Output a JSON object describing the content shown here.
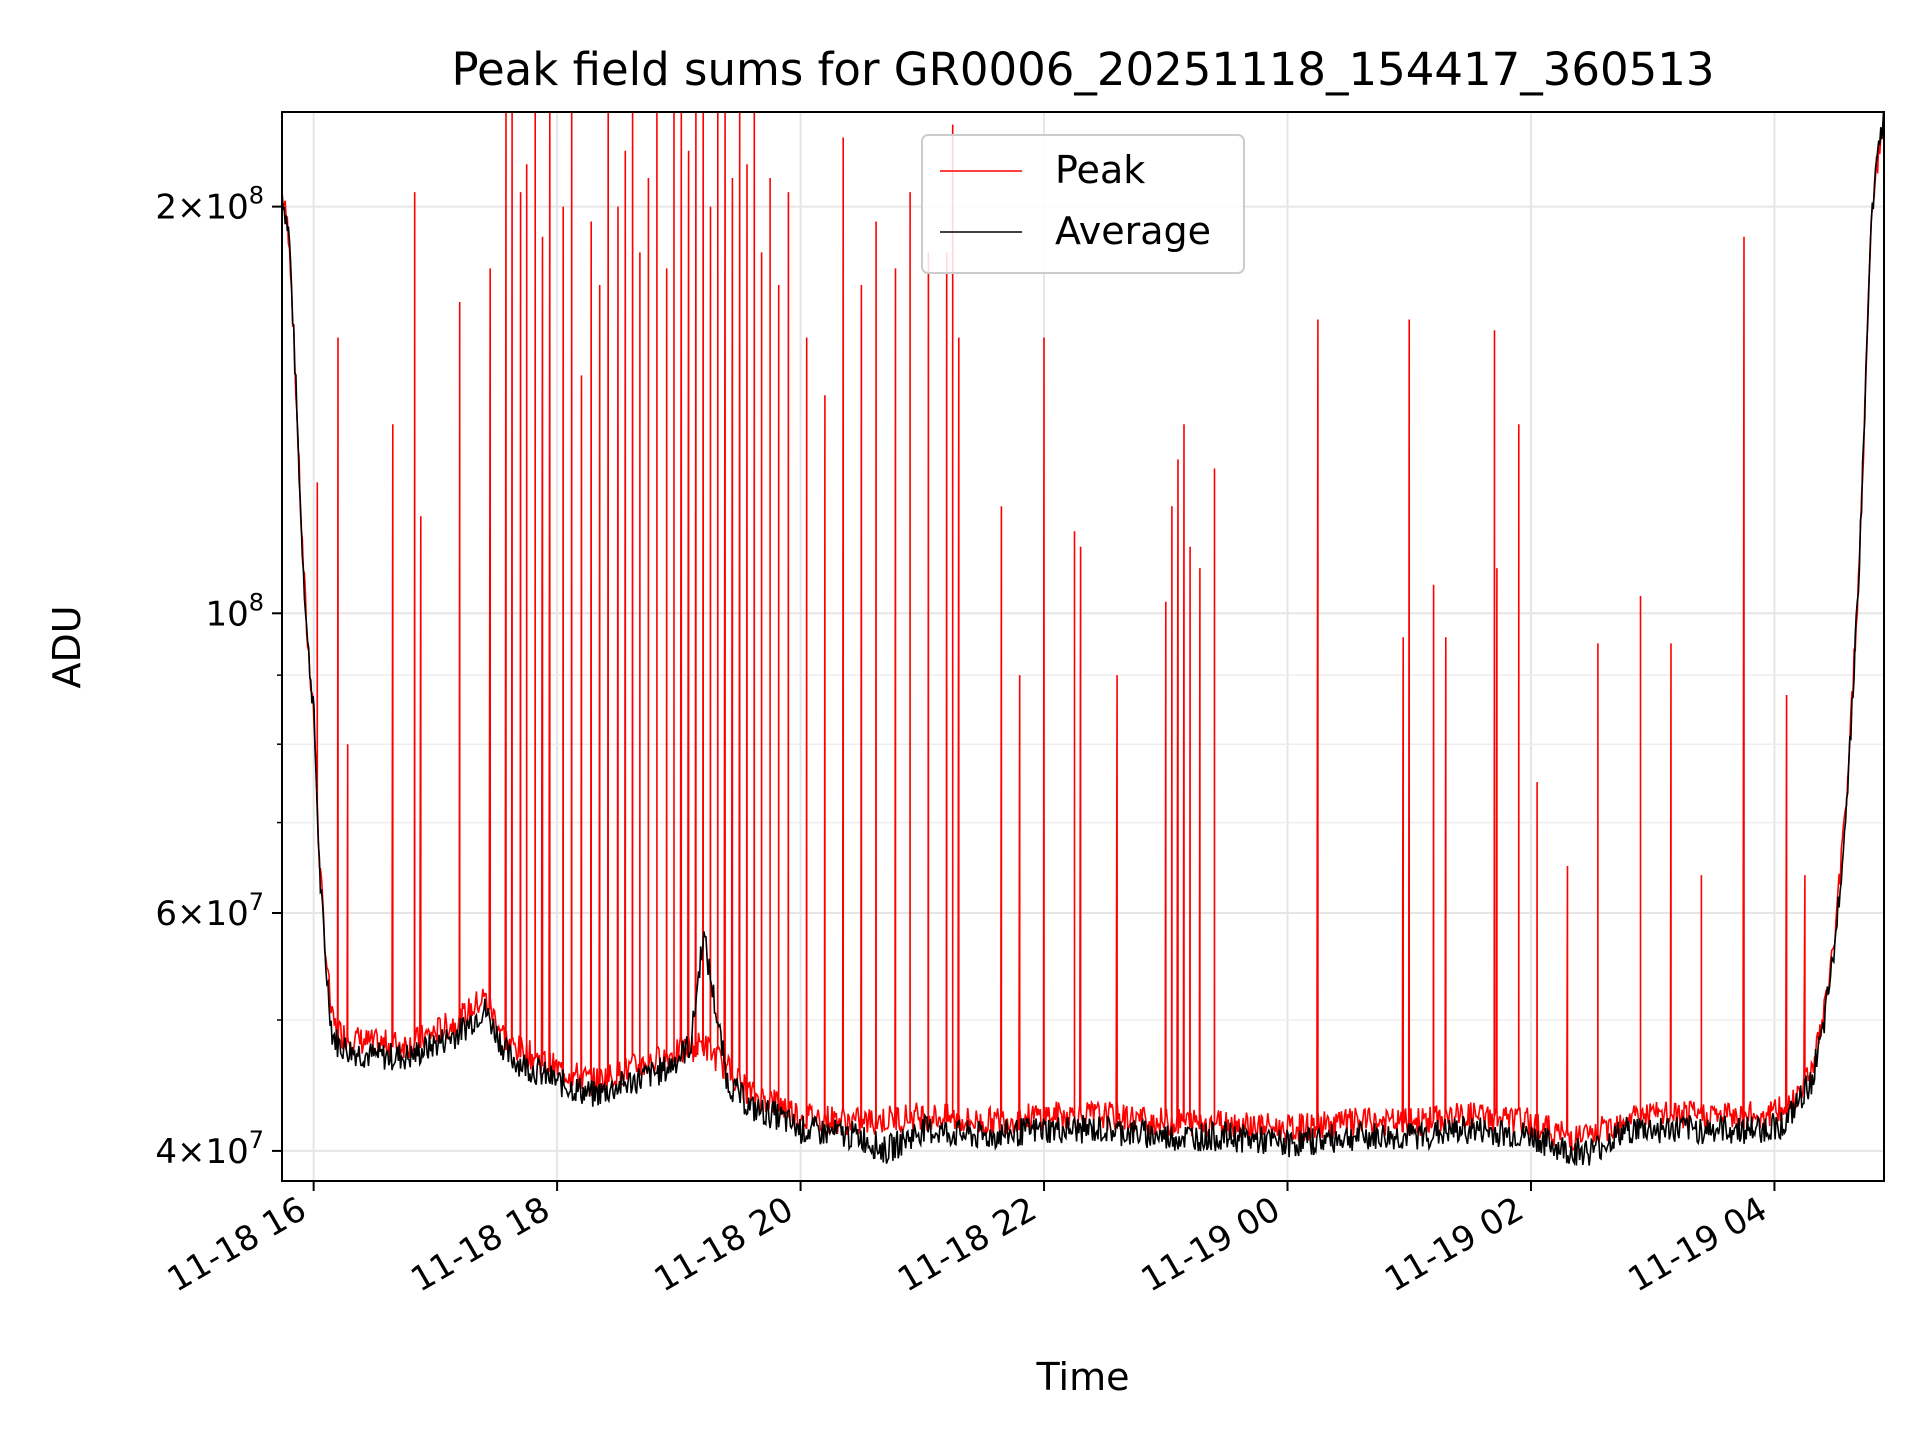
{
  "chart_data": {
    "type": "line",
    "title": "Peak field sums for GR0006_20251118_154417_360513",
    "xlabel": "Time",
    "ylabel": "ADU",
    "y_scale": "log",
    "ylim": [
      38000000,
      235000000
    ],
    "xlim_hours": [
      -0.26,
      12.9
    ],
    "legend_position": "top-center",
    "grid": true,
    "x_ticks": [
      {
        "hour": 0,
        "label": "11-18 16"
      },
      {
        "hour": 2,
        "label": "11-18 18"
      },
      {
        "hour": 4,
        "label": "11-18 20"
      },
      {
        "hour": 6,
        "label": "11-18 22"
      },
      {
        "hour": 8,
        "label": "11-19 00"
      },
      {
        "hour": 10,
        "label": "11-19 02"
      },
      {
        "hour": 12,
        "label": "11-19 04"
      }
    ],
    "y_ticks": [
      {
        "value": 40000000,
        "mantissa": "4",
        "exp": "7"
      },
      {
        "value": 60000000,
        "mantissa": "6",
        "exp": "7"
      },
      {
        "value": 100000000,
        "mantissa": "",
        "exp": "8"
      },
      {
        "value": 200000000,
        "mantissa": "2",
        "exp": "8"
      }
    ],
    "y_minor_ticks": [
      50000000,
      70000000,
      80000000,
      90000000
    ],
    "series": [
      {
        "name": "Peak",
        "color": "#ff0000",
        "baseline_hours": [
          -0.26,
          -0.2,
          -0.15,
          -0.1,
          -0.05,
          0.0,
          0.05,
          0.1,
          0.15,
          0.2,
          0.3,
          0.5,
          0.8,
          1.0,
          1.2,
          1.4,
          1.6,
          1.8,
          2.0,
          2.3,
          2.6,
          2.9,
          3.2,
          3.4,
          3.6,
          3.8,
          4.0,
          4.5,
          5.0,
          5.5,
          6.0,
          6.5,
          7.0,
          7.5,
          8.0,
          8.5,
          9.0,
          9.5,
          10.0,
          10.3,
          10.5,
          10.8,
          11.0,
          11.5,
          11.9,
          12.1,
          12.3,
          12.4,
          12.5,
          12.6,
          12.7,
          12.8,
          12.9
        ],
        "baseline_values": [
          205000000,
          190000000,
          150000000,
          115000000,
          95000000,
          85000000,
          65000000,
          56000000,
          50000000,
          49000000,
          48500000,
          48000000,
          48000000,
          49000000,
          50000000,
          52000000,
          48000000,
          47000000,
          46000000,
          45000000,
          46000000,
          47000000,
          48000000,
          46000000,
          44000000,
          43500000,
          42500000,
          42000000,
          42500000,
          42000000,
          42500000,
          42500000,
          42000000,
          42000000,
          41500000,
          42000000,
          42000000,
          42500000,
          42000000,
          41000000,
          41000000,
          42500000,
          42500000,
          42500000,
          42500000,
          43000000,
          46000000,
          50000000,
          58000000,
          75000000,
          110000000,
          200000000,
          235000000
        ],
        "spike_hours": [
          0.03,
          0.2,
          0.28,
          0.65,
          0.83,
          0.88,
          1.2,
          1.45,
          1.58,
          1.63,
          1.7,
          1.75,
          1.82,
          1.88,
          1.94,
          2.05,
          2.12,
          2.2,
          2.28,
          2.35,
          2.42,
          2.5,
          2.56,
          2.62,
          2.68,
          2.75,
          2.82,
          2.9,
          2.96,
          3.02,
          3.08,
          3.14,
          3.2,
          3.26,
          3.32,
          3.38,
          3.44,
          3.5,
          3.56,
          3.62,
          3.68,
          3.75,
          3.82,
          3.9,
          4.05,
          4.2,
          4.35,
          4.5,
          4.62,
          4.78,
          4.9,
          5.05,
          5.2,
          5.25,
          5.3,
          5.65,
          5.8,
          6.0,
          6.25,
          6.3,
          6.6,
          7.0,
          7.05,
          7.1,
          7.15,
          7.2,
          7.28,
          7.4,
          8.25,
          8.95,
          9.0,
          9.2,
          9.3,
          9.7,
          9.72,
          9.9,
          10.05,
          10.3,
          10.55,
          10.9,
          11.15,
          11.4,
          11.75,
          12.1,
          12.25
        ],
        "spike_values": [
          125000000,
          160000000,
          80000000,
          138000000,
          205000000,
          118000000,
          170000000,
          180000000,
          235000000,
          235000000,
          205000000,
          215000000,
          235000000,
          190000000,
          235000000,
          200000000,
          235000000,
          150000000,
          195000000,
          175000000,
          235000000,
          200000000,
          220000000,
          235000000,
          185000000,
          210000000,
          235000000,
          180000000,
          235000000,
          235000000,
          220000000,
          235000000,
          235000000,
          200000000,
          235000000,
          235000000,
          210000000,
          235000000,
          215000000,
          235000000,
          185000000,
          210000000,
          175000000,
          205000000,
          160000000,
          145000000,
          225000000,
          175000000,
          195000000,
          180000000,
          205000000,
          185000000,
          185000000,
          230000000,
          160000000,
          120000000,
          90000000,
          160000000,
          115000000,
          112000000,
          90000000,
          102000000,
          120000000,
          130000000,
          138000000,
          112000000,
          108000000,
          128000000,
          165000000,
          96000000,
          165000000,
          105000000,
          96000000,
          162000000,
          108000000,
          138000000,
          75000000,
          65000000,
          95000000,
          103000000,
          95000000,
          64000000,
          190000000,
          87000000,
          64000000
        ]
      },
      {
        "name": "Average",
        "color": "#000000",
        "hours": [
          -0.26,
          -0.2,
          -0.15,
          -0.1,
          -0.05,
          0.0,
          0.05,
          0.1,
          0.15,
          0.2,
          0.3,
          0.5,
          0.8,
          1.0,
          1.2,
          1.4,
          1.6,
          1.8,
          2.0,
          2.3,
          2.6,
          2.9,
          3.1,
          3.2,
          3.4,
          3.6,
          3.8,
          4.0,
          4.5,
          4.7,
          5.0,
          5.5,
          6.0,
          6.5,
          7.0,
          7.5,
          8.0,
          8.5,
          9.0,
          9.5,
          10.0,
          10.3,
          10.5,
          10.8,
          11.0,
          11.5,
          11.9,
          12.1,
          12.3,
          12.4,
          12.5,
          12.6,
          12.7,
          12.8,
          12.9
        ],
        "values": [
          205000000,
          190000000,
          150000000,
          115000000,
          95000000,
          85000000,
          64000000,
          55000000,
          49000000,
          48000000,
          47500000,
          47000000,
          47000000,
          48000000,
          49000000,
          51000000,
          47000000,
          46000000,
          45000000,
          44000000,
          45000000,
          46000000,
          48000000,
          58000000,
          45000000,
          43000000,
          42500000,
          41500000,
          41000000,
          40000000,
          41500000,
          41000000,
          41500000,
          41500000,
          41000000,
          41000000,
          40500000,
          41000000,
          41000000,
          41500000,
          41000000,
          40000000,
          40000000,
          41500000,
          41500000,
          41500000,
          41500000,
          42000000,
          45000000,
          49000000,
          57000000,
          74000000,
          110000000,
          200000000,
          235000000
        ]
      }
    ]
  }
}
